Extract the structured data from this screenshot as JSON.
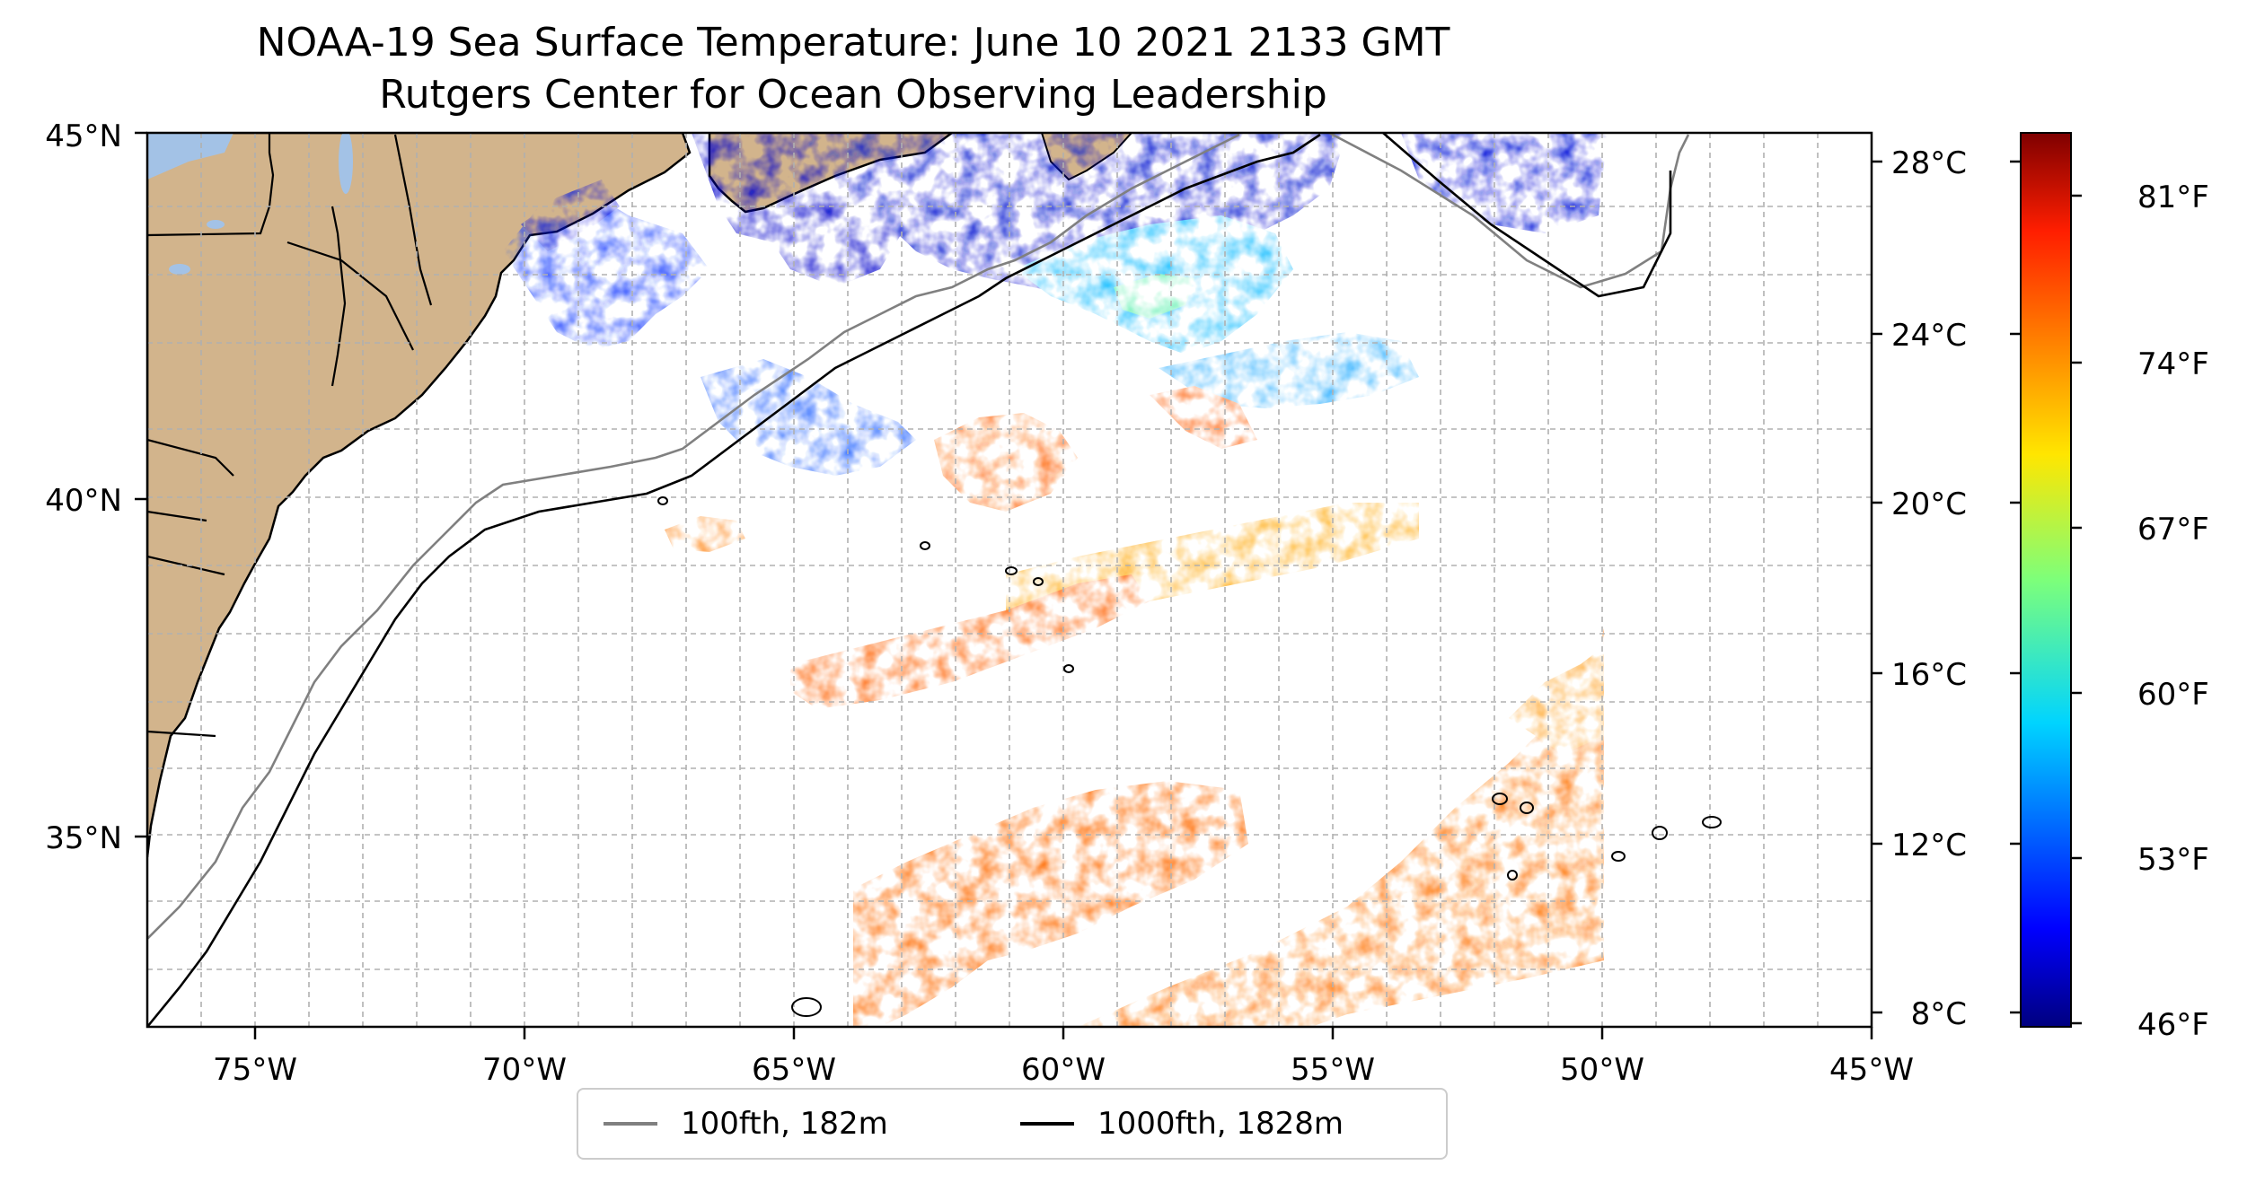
{
  "title": {
    "line1": "NOAA-19 Sea Surface Temperature: June 10 2021 2133 GMT",
    "line2": "Rutgers Center for Ocean Observing Leadership"
  },
  "map": {
    "lon_range": [
      -77,
      -45
    ],
    "lat_range": [
      32.3,
      45
    ],
    "x_tick_labels": [
      "75°W",
      "70°W",
      "65°W",
      "60°W",
      "55°W",
      "50°W",
      "45°W"
    ],
    "x_tick_values": [
      -75,
      -70,
      -65,
      -60,
      -55,
      -50,
      -45
    ],
    "y_tick_labels": [
      "45°N",
      "40°N",
      "35°N"
    ],
    "y_tick_values": [
      45,
      40,
      35
    ],
    "gridlines": true,
    "land_color": "#d2b48c",
    "lake_color": "#a3c2e6",
    "colormap": "jet"
  },
  "colorbar": {
    "celsius_labels": [
      "28°C",
      "24°C",
      "20°C",
      "16°C",
      "12°C",
      "8°C"
    ],
    "celsius_values": [
      28,
      24,
      20,
      16,
      12,
      8
    ],
    "fahrenheit_labels": [
      "81°F",
      "74°F",
      "67°F",
      "60°F",
      "53°F",
      "46°F"
    ],
    "fahrenheit_values": [
      81,
      74,
      67,
      60,
      53,
      46
    ],
    "range_f": [
      46,
      83
    ]
  },
  "legend": {
    "items": [
      {
        "label": "100fth, 182m",
        "color": "#808080"
      },
      {
        "label": "1000fth, 1828m",
        "color": "#000000"
      }
    ]
  }
}
